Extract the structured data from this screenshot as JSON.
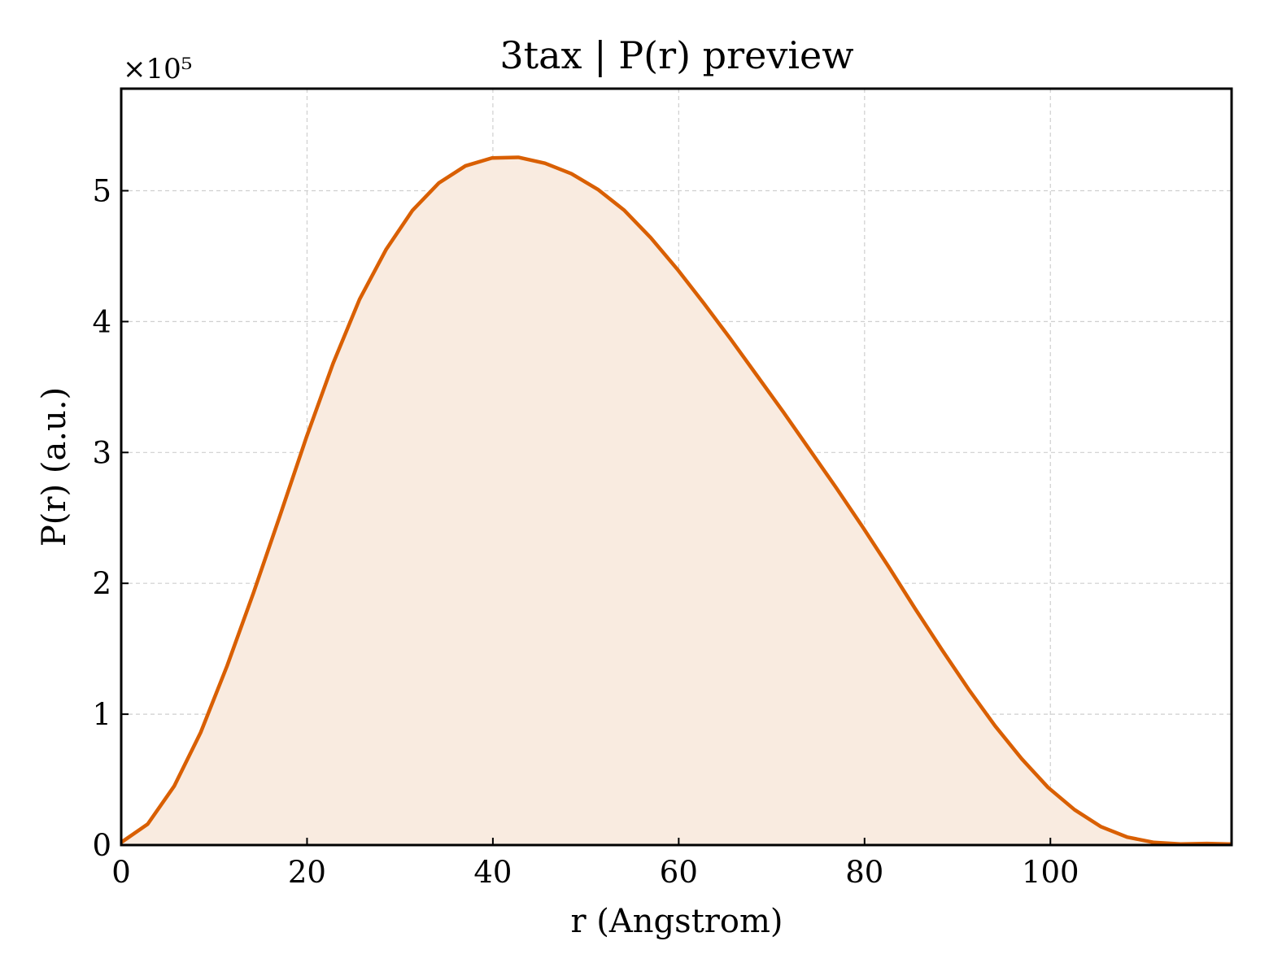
{
  "chart_data": {
    "type": "area",
    "title": "3tax | P(r) preview",
    "xlabel": "r (Angstrom)",
    "ylabel": "P(r) (a.u.)",
    "y_offset_label": "×10⁵",
    "y_scale": 100000,
    "xlim": [
      0,
      119.5
    ],
    "ylim": [
      0,
      578000
    ],
    "x_ticks": [
      0,
      20,
      40,
      60,
      80,
      100
    ],
    "y_ticks": [
      0,
      100000,
      200000,
      300000,
      400000,
      500000
    ],
    "y_tick_labels": [
      "0",
      "1",
      "2",
      "3",
      "4",
      "5"
    ],
    "grid": true,
    "line_color": "#d95f02",
    "fill_color": "#f9ebe0",
    "series": [
      {
        "x": [
          0,
          2.85,
          5.7,
          8.55,
          11.4,
          14.25,
          17.1,
          19.95,
          22.8,
          25.65,
          28.5,
          31.35,
          34.2,
          37.05,
          39.9,
          42.75,
          45.6,
          48.45,
          51.3,
          54.15,
          57.0,
          59.85,
          62.7,
          65.55,
          68.4,
          71.25,
          74.1,
          76.95,
          79.8,
          82.65,
          85.5,
          88.35,
          91.2,
          94.05,
          96.9,
          99.75,
          102.6,
          105.45,
          108.3,
          111.15,
          114.0,
          116.85,
          119.5
        ],
        "y": [
          2000,
          16000,
          45000,
          86000,
          137000,
          193000,
          252000,
          312000,
          368000,
          417000,
          455000,
          485000,
          506000,
          519000,
          525000,
          525500,
          521000,
          513000,
          501000,
          485000,
          464000,
          440000,
          414000,
          387000,
          359000,
          331000,
          302000,
          273000,
          243000,
          212000,
          180000,
          149000,
          119000,
          91000,
          66000,
          44000,
          27000,
          14000,
          6000,
          2000,
          800,
          1200,
          700
        ]
      }
    ]
  }
}
